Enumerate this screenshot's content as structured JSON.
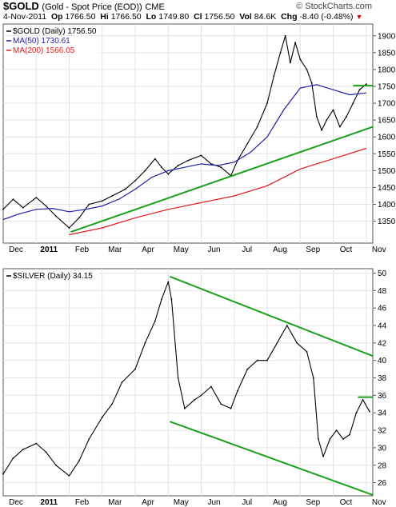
{
  "header": {
    "symbol": "$GOLD",
    "description": "(Gold - Spot Price (EOD))",
    "exchange": "CME",
    "date": "4-Nov-2011",
    "open_label": "Op",
    "open": "1766.50",
    "high_label": "Hi",
    "high": "1766.50",
    "low_label": "Lo",
    "low": "1749.80",
    "close_label": "Cl",
    "close": "1756.50",
    "volume_label": "Vol",
    "volume": "84.6K",
    "change_label": "Chg",
    "change": "-8.40 (-0.48%)",
    "change_arrow": "▼",
    "brand": "© StockCharts.com"
  },
  "chart_data": [
    {
      "type": "line",
      "legend": [
        {
          "text": "$GOLD (Daily) 1756.50",
          "color": "#000000",
          "marker": "-"
        },
        {
          "text": "MA(50) 1730.61",
          "color": "#1f1fa8",
          "marker": "-"
        },
        {
          "text": "MA(200) 1566.05",
          "color": "#e01b1b",
          "marker": "-"
        }
      ],
      "x_ticks": [
        "Dec",
        "2011",
        "Feb",
        "Mar",
        "Apr",
        "May",
        "Jun",
        "Jul",
        "Aug",
        "Sep",
        "Oct",
        "Nov"
      ],
      "x_range": [
        0,
        11.2
      ],
      "ylim": [
        1285,
        1935
      ],
      "y_ticks": [
        1350,
        1400,
        1450,
        1500,
        1550,
        1600,
        1650,
        1700,
        1750,
        1800,
        1850,
        1900
      ],
      "grid": true,
      "series": [
        {
          "key": "price",
          "color": "#000000",
          "points": [
            [
              0,
              1385
            ],
            [
              0.3,
              1415
            ],
            [
              0.6,
              1390
            ],
            [
              1,
              1420
            ],
            [
              1.3,
              1395
            ],
            [
              1.6,
              1365
            ],
            [
              2,
              1330
            ],
            [
              2.3,
              1360
            ],
            [
              2.6,
              1400
            ],
            [
              3,
              1410
            ],
            [
              3.3,
              1425
            ],
            [
              3.7,
              1445
            ],
            [
              4,
              1470
            ],
            [
              4.3,
              1500
            ],
            [
              4.6,
              1535
            ],
            [
              4.8,
              1510
            ],
            [
              5,
              1490
            ],
            [
              5.3,
              1515
            ],
            [
              5.6,
              1530
            ],
            [
              6,
              1545
            ],
            [
              6.3,
              1520
            ],
            [
              6.6,
              1510
            ],
            [
              6.9,
              1485
            ],
            [
              7.1,
              1530
            ],
            [
              7.4,
              1580
            ],
            [
              7.7,
              1630
            ],
            [
              8,
              1700
            ],
            [
              8.2,
              1780
            ],
            [
              8.4,
              1850
            ],
            [
              8.55,
              1900
            ],
            [
              8.7,
              1820
            ],
            [
              8.85,
              1880
            ],
            [
              9,
              1830
            ],
            [
              9.2,
              1800
            ],
            [
              9.35,
              1760
            ],
            [
              9.5,
              1660
            ],
            [
              9.65,
              1620
            ],
            [
              9.8,
              1650
            ],
            [
              10,
              1680
            ],
            [
              10.2,
              1630
            ],
            [
              10.4,
              1660
            ],
            [
              10.6,
              1700
            ],
            [
              10.8,
              1740
            ],
            [
              11,
              1756.5
            ]
          ]
        },
        {
          "key": "ma50",
          "color": "#1f1fa8",
          "points": [
            [
              0,
              1355
            ],
            [
              0.5,
              1372
            ],
            [
              1,
              1385
            ],
            [
              1.5,
              1388
            ],
            [
              2,
              1378
            ],
            [
              2.5,
              1385
            ],
            [
              3,
              1395
            ],
            [
              3.5,
              1415
            ],
            [
              4,
              1445
            ],
            [
              4.5,
              1480
            ],
            [
              5,
              1500
            ],
            [
              5.5,
              1510
            ],
            [
              6,
              1520
            ],
            [
              6.5,
              1515
            ],
            [
              7,
              1525
            ],
            [
              7.5,
              1555
            ],
            [
              8,
              1600
            ],
            [
              8.5,
              1680
            ],
            [
              9,
              1745
            ],
            [
              9.5,
              1755
            ],
            [
              10,
              1740
            ],
            [
              10.5,
              1725
            ],
            [
              11,
              1730.61
            ]
          ]
        },
        {
          "key": "ma200",
          "color": "#e01b1b",
          "points": [
            [
              2,
              1310
            ],
            [
              3,
              1330
            ],
            [
              4,
              1360
            ],
            [
              5,
              1385
            ],
            [
              6,
              1405
            ],
            [
              7,
              1425
            ],
            [
              8,
              1455
            ],
            [
              9,
              1505
            ],
            [
              10,
              1535
            ],
            [
              11,
              1566.05
            ]
          ]
        }
      ],
      "trendlines": [
        {
          "color": "#1aa01a",
          "from": [
            2.05,
            1318
          ],
          "to": [
            11.2,
            1630
          ]
        },
        {
          "color": "#1aa01a",
          "from": [
            10.6,
            1752
          ],
          "to": [
            11.2,
            1752
          ]
        }
      ]
    },
    {
      "type": "line",
      "legend": [
        {
          "text": "$SILVER (Daily) 34.15",
          "color": "#000000",
          "marker": "-"
        }
      ],
      "x_ticks": [
        "Dec",
        "2011",
        "Feb",
        "Mar",
        "Apr",
        "May",
        "Jun",
        "Jul",
        "Aug",
        "Sep",
        "Oct",
        "Nov"
      ],
      "x_range": [
        0,
        11.2
      ],
      "ylim": [
        24.5,
        50.5
      ],
      "y_ticks": [
        26,
        28,
        30,
        32,
        34,
        36,
        38,
        40,
        42,
        44,
        46,
        48,
        50
      ],
      "grid": true,
      "series": [
        {
          "key": "price",
          "color": "#000000",
          "points": [
            [
              0,
              27
            ],
            [
              0.3,
              28.8
            ],
            [
              0.6,
              29.8
            ],
            [
              1,
              30.5
            ],
            [
              1.3,
              29.5
            ],
            [
              1.6,
              28
            ],
            [
              2,
              26.8
            ],
            [
              2.3,
              28.5
            ],
            [
              2.6,
              31
            ],
            [
              3,
              33.5
            ],
            [
              3.3,
              35
            ],
            [
              3.6,
              37.5
            ],
            [
              4,
              39
            ],
            [
              4.3,
              42
            ],
            [
              4.6,
              44.5
            ],
            [
              4.8,
              47
            ],
            [
              5,
              49
            ],
            [
              5.1,
              47
            ],
            [
              5.3,
              38
            ],
            [
              5.5,
              34.5
            ],
            [
              5.8,
              35.5
            ],
            [
              6,
              36
            ],
            [
              6.3,
              37
            ],
            [
              6.6,
              35
            ],
            [
              6.9,
              34.5
            ],
            [
              7.1,
              36.5
            ],
            [
              7.4,
              39
            ],
            [
              7.7,
              40
            ],
            [
              8,
              40
            ],
            [
              8.3,
              42
            ],
            [
              8.6,
              44
            ],
            [
              8.9,
              42
            ],
            [
              9.2,
              41
            ],
            [
              9.4,
              38
            ],
            [
              9.55,
              31
            ],
            [
              9.7,
              29
            ],
            [
              9.9,
              31
            ],
            [
              10.1,
              32
            ],
            [
              10.3,
              31
            ],
            [
              10.5,
              31.5
            ],
            [
              10.7,
              34
            ],
            [
              10.9,
              35.5
            ],
            [
              11.1,
              34.15
            ]
          ]
        }
      ],
      "trendlines": [
        {
          "color": "#1aa01a",
          "from": [
            5.05,
            49.6
          ],
          "to": [
            11.2,
            40.5
          ]
        },
        {
          "color": "#1aa01a",
          "from": [
            5.05,
            33.0
          ],
          "to": [
            11.2,
            24.6
          ]
        },
        {
          "color": "#1aa01a",
          "from": [
            10.75,
            35.8
          ],
          "to": [
            11.2,
            35.8
          ]
        }
      ]
    }
  ]
}
